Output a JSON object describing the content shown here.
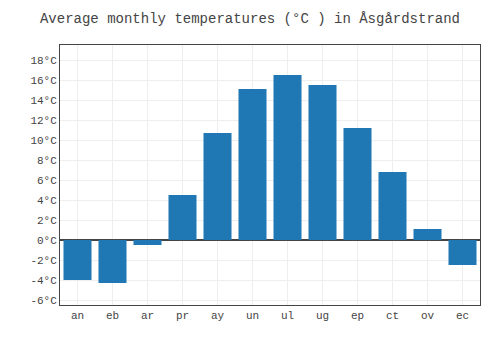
{
  "chart_data": {
    "type": "bar",
    "title": "Average monthly temperatures (°C ) in Åsgårdstrand",
    "categories": [
      "an",
      "eb",
      "ar",
      "pr",
      "ay",
      "un",
      "ul",
      "ug",
      "ep",
      "ct",
      "ov",
      "ec"
    ],
    "values": [
      -4.0,
      -4.3,
      -0.5,
      4.5,
      10.7,
      15.1,
      16.5,
      15.5,
      11.2,
      6.8,
      1.1,
      -2.5
    ],
    "ylim": [
      -6.5,
      19.5
    ],
    "yticks": [
      {
        "value": -6,
        "label": "-6°C"
      },
      {
        "value": -4,
        "label": "-4°C"
      },
      {
        "value": -2,
        "label": "-2°C"
      },
      {
        "value": 0,
        "label": "0°C"
      },
      {
        "value": 2,
        "label": "2°C"
      },
      {
        "value": 4,
        "label": "4°C"
      },
      {
        "value": 6,
        "label": "6°C"
      },
      {
        "value": 8,
        "label": "8°C"
      },
      {
        "value": 10,
        "label": "10°C"
      },
      {
        "value": 12,
        "label": "12°C"
      },
      {
        "value": 14,
        "label": "14°C"
      },
      {
        "value": 16,
        "label": "16°C"
      },
      {
        "value": 18,
        "label": "18°C"
      }
    ],
    "grid": true
  }
}
